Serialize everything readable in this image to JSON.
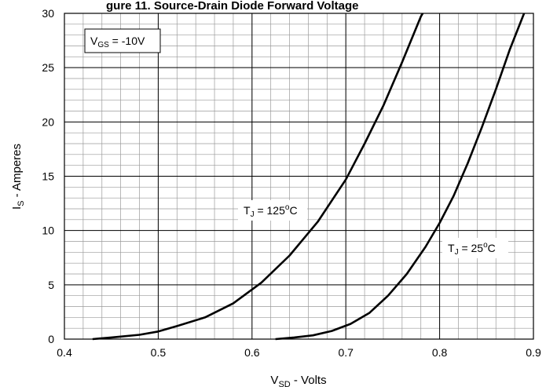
{
  "chart_data": {
    "type": "line",
    "title": "gure 11. Source-Drain Diode Forward Voltage",
    "xlabel": {
      "main": "V",
      "sub": "SD",
      "rest": " - Volts"
    },
    "ylabel": {
      "main": "I",
      "sub": "S",
      "rest": " - Amperes"
    },
    "xlim": [
      0.4,
      0.9
    ],
    "ylim": [
      0,
      30
    ],
    "x_ticks": [
      "0.4",
      "0.5",
      "0.6",
      "0.7",
      "0.8",
      "0.9"
    ],
    "y_ticks": [
      "0",
      "5",
      "10",
      "15",
      "20",
      "25",
      "30"
    ],
    "x_tick_values": [
      0.4,
      0.5,
      0.6,
      0.7,
      0.8,
      0.9
    ],
    "y_tick_values": [
      0,
      5,
      10,
      15,
      20,
      25,
      30
    ],
    "minor_grid": {
      "x_step": 0.02,
      "y_step": 1
    },
    "grid": true,
    "annotations": {
      "vgs": {
        "main": "V",
        "sub": "GS",
        "rest": " = -10V"
      }
    },
    "series": [
      {
        "name": "TJ = 125°C",
        "label": {
          "main": "T",
          "sub": "J",
          "rest": " = 125",
          "sup": "o",
          "tail": "C"
        },
        "color": "#000000",
        "points": [
          [
            0.43,
            0.0
          ],
          [
            0.45,
            0.15
          ],
          [
            0.48,
            0.4
          ],
          [
            0.5,
            0.7
          ],
          [
            0.52,
            1.2
          ],
          [
            0.55,
            2.0
          ],
          [
            0.58,
            3.3
          ],
          [
            0.61,
            5.2
          ],
          [
            0.64,
            7.7
          ],
          [
            0.67,
            10.8
          ],
          [
            0.7,
            14.7
          ],
          [
            0.72,
            18.0
          ],
          [
            0.74,
            21.5
          ],
          [
            0.76,
            25.5
          ],
          [
            0.78,
            29.7
          ],
          [
            0.782,
            30.0
          ]
        ]
      },
      {
        "name": "TJ = 25°C",
        "label": {
          "main": "T",
          "sub": "J",
          "rest": " = 25",
          "sup": "o",
          "tail": "C"
        },
        "color": "#000000",
        "points": [
          [
            0.625,
            0.0
          ],
          [
            0.645,
            0.15
          ],
          [
            0.665,
            0.35
          ],
          [
            0.685,
            0.75
          ],
          [
            0.705,
            1.4
          ],
          [
            0.725,
            2.4
          ],
          [
            0.745,
            4.0
          ],
          [
            0.765,
            6.0
          ],
          [
            0.785,
            8.5
          ],
          [
            0.8,
            10.7
          ],
          [
            0.815,
            13.2
          ],
          [
            0.83,
            16.2
          ],
          [
            0.845,
            19.5
          ],
          [
            0.86,
            23.0
          ],
          [
            0.875,
            26.7
          ],
          [
            0.89,
            30.0
          ]
        ]
      }
    ]
  }
}
